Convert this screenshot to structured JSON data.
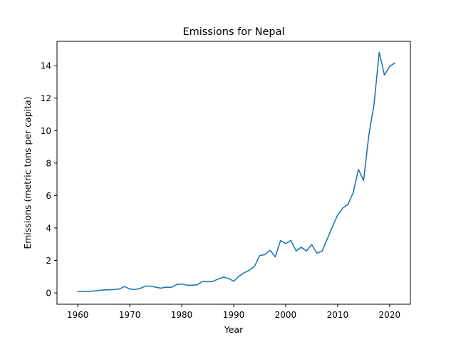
{
  "chart_data": {
    "type": "line",
    "title": "Emissions for Nepal",
    "xlabel": "Year",
    "ylabel": "Emissions (metric tons per capita)",
    "xlim": [
      1956,
      2024
    ],
    "ylim": [
      -0.7,
      15.5
    ],
    "xticks": [
      1960,
      1970,
      1980,
      1990,
      2000,
      2010,
      2020
    ],
    "yticks": [
      0,
      2,
      4,
      6,
      8,
      10,
      12,
      14
    ],
    "grid": false,
    "line_color": "#1f77b4",
    "series": [
      {
        "x": [
          1960,
          1961,
          1962,
          1963,
          1964,
          1965,
          1966,
          1967,
          1968,
          1969,
          1970,
          1971,
          1972,
          1973,
          1974,
          1975,
          1976,
          1977,
          1978,
          1979,
          1980,
          1981,
          1982,
          1983,
          1984,
          1985,
          1986,
          1987,
          1988,
          1989,
          1990,
          1991,
          1992,
          1993,
          1994,
          1995,
          1996,
          1997,
          1998,
          1999,
          2000,
          2001,
          2002,
          2003,
          2004,
          2005,
          2006,
          2007,
          2008,
          2009,
          2010,
          2011,
          2012,
          2013,
          2014,
          2015,
          2016,
          2017,
          2018,
          2019,
          2020,
          2021
        ],
        "values": [
          0.09,
          0.09,
          0.1,
          0.11,
          0.15,
          0.18,
          0.19,
          0.21,
          0.24,
          0.39,
          0.24,
          0.21,
          0.27,
          0.42,
          0.42,
          0.35,
          0.29,
          0.35,
          0.34,
          0.51,
          0.55,
          0.47,
          0.47,
          0.5,
          0.71,
          0.68,
          0.71,
          0.85,
          0.97,
          0.89,
          0.72,
          1.02,
          1.24,
          1.39,
          1.63,
          2.3,
          2.36,
          2.63,
          2.22,
          3.22,
          3.04,
          3.23,
          2.59,
          2.81,
          2.58,
          2.98,
          2.45,
          2.57,
          3.32,
          4.08,
          4.8,
          5.23,
          5.46,
          6.18,
          7.61,
          6.92,
          9.72,
          11.61,
          14.83,
          13.42,
          13.95,
          14.17
        ]
      }
    ]
  }
}
